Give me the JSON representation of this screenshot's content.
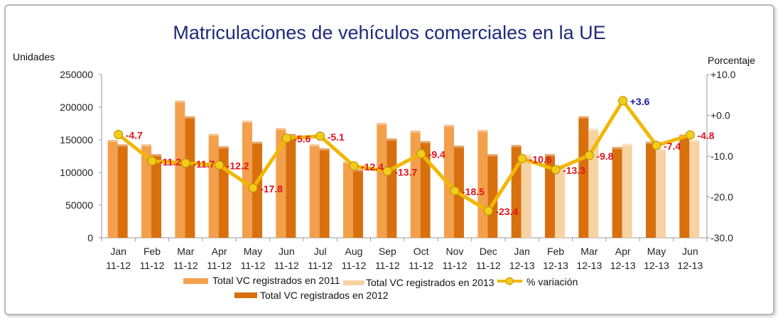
{
  "chart_data": {
    "type": "bar",
    "title": "Matriculaciones de vehículos comerciales en la UE",
    "ylabel": "Unidades",
    "y2label": "Porcentaje",
    "ylim": [
      0,
      250000
    ],
    "y2lim": [
      -30,
      10
    ],
    "yticks": [
      "0",
      "50000",
      "100000",
      "150000",
      "200000",
      "250000"
    ],
    "y2ticks": [
      "-30.0",
      "-20.0",
      "-10.0",
      "+0.0",
      "+10.0"
    ],
    "y2tick_values": [
      -30,
      -20,
      -10,
      0,
      10
    ],
    "categories": [
      [
        "Jan",
        "11-12"
      ],
      [
        "Feb",
        "11-12"
      ],
      [
        "Mar",
        "11-12"
      ],
      [
        "Apr",
        "11-12"
      ],
      [
        "May",
        "11-12"
      ],
      [
        "Jun",
        "11-12"
      ],
      [
        "Jul",
        "11-12"
      ],
      [
        "Aug",
        "11-12"
      ],
      [
        "Sep",
        "11-12"
      ],
      [
        "Oct",
        "11-12"
      ],
      [
        "Nov",
        "11-12"
      ],
      [
        "Dec",
        "11-12"
      ],
      [
        "Jan",
        "12-13"
      ],
      [
        "Feb",
        "12-13"
      ],
      [
        "Mar",
        "12-13"
      ],
      [
        "Apr",
        "12-13"
      ],
      [
        "May",
        "12-13"
      ],
      [
        "Jun",
        "12-13"
      ]
    ],
    "series": [
      {
        "name": "Total VC registrados en 2011",
        "color": "#f3a04c",
        "values": [
          150000,
          143000,
          210000,
          159000,
          179000,
          168000,
          143000,
          117000,
          176000,
          164000,
          173000,
          165000,
          null,
          null,
          null,
          null,
          null,
          null
        ]
      },
      {
        "name": "Total VC registrados en 2012",
        "color": "#d8700e",
        "values": [
          143000,
          128000,
          186000,
          140000,
          147000,
          159000,
          137000,
          105000,
          152000,
          148000,
          141000,
          128000,
          142000,
          128000,
          186000,
          139000,
          147000,
          158000
        ]
      },
      {
        "name": "Total VC registrados en 2013",
        "color": "#f7d3a2",
        "values": [
          null,
          null,
          null,
          null,
          null,
          null,
          null,
          null,
          null,
          null,
          null,
          null,
          128000,
          111000,
          167000,
          144000,
          136000,
          150000
        ]
      }
    ],
    "line": {
      "name": "% variación",
      "color": "#f2b705",
      "axis": "right",
      "values": [
        -4.7,
        -11.2,
        -11.7,
        -12.2,
        -17.8,
        -5.6,
        -5.1,
        -12.4,
        -13.7,
        -9.4,
        -18.5,
        -23.4,
        -10.6,
        -13.3,
        -9.8,
        3.6,
        -7.4,
        -4.8
      ],
      "labels": [
        "-4.7",
        "-11.2",
        "-11.7",
        "-12.2",
        "-17.8",
        "-5.6",
        "-5.1",
        "-12.4",
        "-13.7",
        "-9.4",
        "-18.5",
        "-23.4",
        "-10.6",
        "-13.3",
        "-9.8",
        "+3.6",
        "-7.4",
        "-4.8"
      ]
    },
    "negative_color": "#e0141e",
    "positive_color": "#1a1aa8",
    "legend": [
      "Total VC registrados en 2011",
      "Total VC registrados en 2013",
      "% variación",
      "Total VC registrados en 2012"
    ],
    "legend_placement": "bottom"
  }
}
